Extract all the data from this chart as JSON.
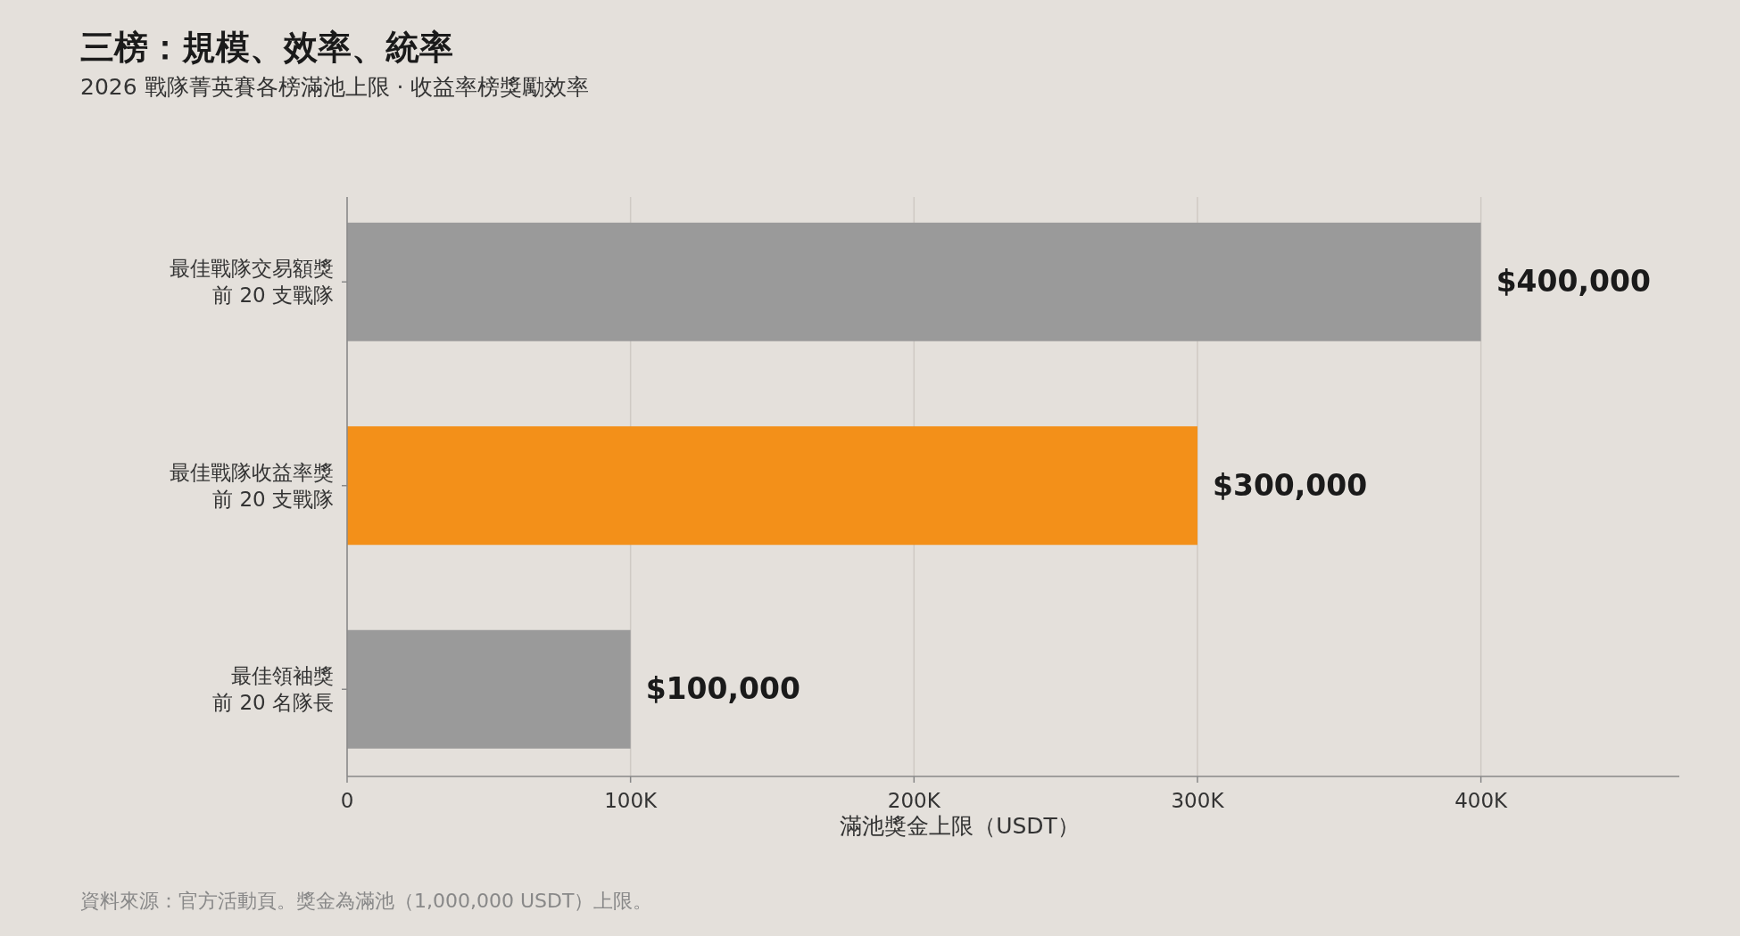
{
  "chart_data": {
    "type": "bar",
    "orientation": "horizontal",
    "title": "三榜：規模、效率、統率",
    "subtitle": "2026 戰隊菁英賽各榜滿池上限 · 收益率榜獎勵效率",
    "xlabel": "滿池獎金上限（USDT）",
    "categories": [
      "最佳戰隊交易額獎前 20 支戰隊",
      "最佳戰隊收益率獎前 20 支戰隊",
      "最佳領袖獎前 20 名隊長"
    ],
    "values": [
      400000,
      300000,
      100000
    ],
    "colors": [
      "#9a9a9a",
      "#f39019",
      "#9a9a9a"
    ],
    "value_labels": [
      "$400,000",
      "$300,000",
      "$100,000"
    ],
    "xlim": [
      0,
      470000
    ],
    "xticks": [
      0,
      {
        "value": 100000,
        "label": "100K"
      },
      {
        "value": 200000,
        "label": "200K"
      },
      {
        "value": 300000,
        "label": "300K"
      },
      {
        "value": 400000,
        "label": "400K"
      }
    ],
    "grid": "x",
    "annotations": [
      "資料來源：官方活動頁。獎金為滿池（1,000,000 USDT）上限。"
    ]
  }
}
